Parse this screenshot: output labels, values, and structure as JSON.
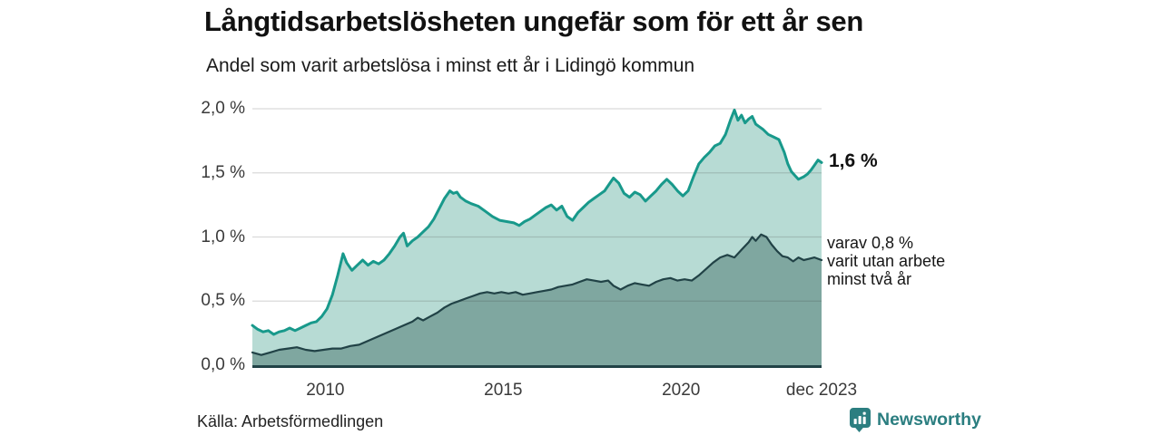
{
  "header": {
    "title": "Långtidsarbetslösheten ungefär som för ett år sen",
    "subtitle": "Andel som varit arbetslösa i minst ett år i Lidingö kommun"
  },
  "chart_data": {
    "type": "area",
    "title": "Långtidsarbetslösheten ungefär som för ett år sen",
    "subtitle": "Andel som varit arbetslösa i minst ett år i Lidingö kommun",
    "unit": "%",
    "grid": "horizontal",
    "x_axis": {
      "range_years": [
        2007.95,
        2023.95
      ],
      "ticks": [
        {
          "label": "2010",
          "year": 2010
        },
        {
          "label": "2015",
          "year": 2015
        },
        {
          "label": "2020",
          "year": 2020
        },
        {
          "label": "dec 2023",
          "year": 2023.95
        }
      ]
    },
    "y_axis": {
      "range": [
        0,
        2.0
      ],
      "ticks": [
        {
          "label": "0,0 %",
          "value": 0.0
        },
        {
          "label": "0,5 %",
          "value": 0.5
        },
        {
          "label": "1,0 %",
          "value": 1.0
        },
        {
          "label": "1,5 %",
          "value": 1.5
        },
        {
          "label": "2,0 %",
          "value": 2.0
        }
      ]
    },
    "colors": {
      "total_line": "#18998b",
      "total_fill": "#b7dbd4",
      "two_year_line": "#214246",
      "two_year_fill": "#7fa7a0",
      "gridline": "rgba(50,50,50,0.18)",
      "baseline": "#214246"
    },
    "series": [
      {
        "name": "Andel som varit arbetslösa i minst ett år",
        "end_value": 1.6,
        "points": [
          [
            2007.95,
            0.31
          ],
          [
            2008.1,
            0.28
          ],
          [
            2008.25,
            0.26
          ],
          [
            2008.4,
            0.27
          ],
          [
            2008.55,
            0.24
          ],
          [
            2008.7,
            0.26
          ],
          [
            2008.85,
            0.27
          ],
          [
            2009.0,
            0.29
          ],
          [
            2009.15,
            0.27
          ],
          [
            2009.3,
            0.29
          ],
          [
            2009.45,
            0.31
          ],
          [
            2009.6,
            0.33
          ],
          [
            2009.75,
            0.34
          ],
          [
            2009.9,
            0.38
          ],
          [
            2010.05,
            0.44
          ],
          [
            2010.2,
            0.55
          ],
          [
            2010.35,
            0.7
          ],
          [
            2010.5,
            0.87
          ],
          [
            2010.6,
            0.8
          ],
          [
            2010.75,
            0.74
          ],
          [
            2010.9,
            0.78
          ],
          [
            2011.05,
            0.82
          ],
          [
            2011.2,
            0.78
          ],
          [
            2011.35,
            0.81
          ],
          [
            2011.5,
            0.79
          ],
          [
            2011.65,
            0.82
          ],
          [
            2011.8,
            0.87
          ],
          [
            2011.95,
            0.93
          ],
          [
            2012.1,
            1.0
          ],
          [
            2012.2,
            1.03
          ],
          [
            2012.3,
            0.93
          ],
          [
            2012.45,
            0.97
          ],
          [
            2012.6,
            1.0
          ],
          [
            2012.75,
            1.04
          ],
          [
            2012.9,
            1.08
          ],
          [
            2013.05,
            1.14
          ],
          [
            2013.2,
            1.22
          ],
          [
            2013.35,
            1.3
          ],
          [
            2013.5,
            1.36
          ],
          [
            2013.6,
            1.34
          ],
          [
            2013.7,
            1.35
          ],
          [
            2013.8,
            1.31
          ],
          [
            2013.95,
            1.28
          ],
          [
            2014.1,
            1.26
          ],
          [
            2014.3,
            1.24
          ],
          [
            2014.5,
            1.2
          ],
          [
            2014.7,
            1.16
          ],
          [
            2014.9,
            1.13
          ],
          [
            2015.1,
            1.12
          ],
          [
            2015.3,
            1.11
          ],
          [
            2015.45,
            1.09
          ],
          [
            2015.6,
            1.12
          ],
          [
            2015.75,
            1.14
          ],
          [
            2015.9,
            1.17
          ],
          [
            2016.05,
            1.2
          ],
          [
            2016.2,
            1.23
          ],
          [
            2016.35,
            1.25
          ],
          [
            2016.5,
            1.21
          ],
          [
            2016.65,
            1.24
          ],
          [
            2016.8,
            1.16
          ],
          [
            2016.95,
            1.13
          ],
          [
            2017.1,
            1.19
          ],
          [
            2017.25,
            1.23
          ],
          [
            2017.4,
            1.27
          ],
          [
            2017.55,
            1.3
          ],
          [
            2017.7,
            1.33
          ],
          [
            2017.85,
            1.36
          ],
          [
            2018.0,
            1.42
          ],
          [
            2018.1,
            1.46
          ],
          [
            2018.25,
            1.42
          ],
          [
            2018.4,
            1.34
          ],
          [
            2018.55,
            1.31
          ],
          [
            2018.7,
            1.35
          ],
          [
            2018.85,
            1.33
          ],
          [
            2019.0,
            1.28
          ],
          [
            2019.15,
            1.32
          ],
          [
            2019.3,
            1.36
          ],
          [
            2019.45,
            1.41
          ],
          [
            2019.6,
            1.45
          ],
          [
            2019.75,
            1.41
          ],
          [
            2019.9,
            1.36
          ],
          [
            2020.05,
            1.32
          ],
          [
            2020.2,
            1.36
          ],
          [
            2020.35,
            1.47
          ],
          [
            2020.5,
            1.57
          ],
          [
            2020.65,
            1.62
          ],
          [
            2020.8,
            1.66
          ],
          [
            2020.95,
            1.71
          ],
          [
            2021.1,
            1.73
          ],
          [
            2021.25,
            1.8
          ],
          [
            2021.4,
            1.92
          ],
          [
            2021.5,
            1.99
          ],
          [
            2021.6,
            1.91
          ],
          [
            2021.7,
            1.95
          ],
          [
            2021.8,
            1.89
          ],
          [
            2021.9,
            1.92
          ],
          [
            2022.0,
            1.94
          ],
          [
            2022.1,
            1.88
          ],
          [
            2022.2,
            1.86
          ],
          [
            2022.3,
            1.84
          ],
          [
            2022.45,
            1.8
          ],
          [
            2022.6,
            1.78
          ],
          [
            2022.75,
            1.76
          ],
          [
            2022.9,
            1.66
          ],
          [
            2023.0,
            1.57
          ],
          [
            2023.1,
            1.51
          ],
          [
            2023.2,
            1.48
          ],
          [
            2023.3,
            1.45
          ],
          [
            2023.45,
            1.47
          ],
          [
            2023.55,
            1.49
          ],
          [
            2023.65,
            1.52
          ],
          [
            2023.75,
            1.56
          ],
          [
            2023.85,
            1.6
          ],
          [
            2023.95,
            1.58
          ]
        ]
      },
      {
        "name": "varav utan arbete minst två år",
        "end_value": 0.8,
        "points": [
          [
            2007.95,
            0.1
          ],
          [
            2008.2,
            0.08
          ],
          [
            2008.45,
            0.1
          ],
          [
            2008.7,
            0.12
          ],
          [
            2008.95,
            0.13
          ],
          [
            2009.2,
            0.14
          ],
          [
            2009.45,
            0.12
          ],
          [
            2009.7,
            0.11
          ],
          [
            2009.95,
            0.12
          ],
          [
            2010.2,
            0.13
          ],
          [
            2010.45,
            0.13
          ],
          [
            2010.7,
            0.15
          ],
          [
            2010.95,
            0.16
          ],
          [
            2011.2,
            0.19
          ],
          [
            2011.45,
            0.22
          ],
          [
            2011.7,
            0.25
          ],
          [
            2011.95,
            0.28
          ],
          [
            2012.2,
            0.31
          ],
          [
            2012.45,
            0.34
          ],
          [
            2012.6,
            0.37
          ],
          [
            2012.75,
            0.35
          ],
          [
            2012.95,
            0.38
          ],
          [
            2013.15,
            0.41
          ],
          [
            2013.35,
            0.45
          ],
          [
            2013.55,
            0.48
          ],
          [
            2013.75,
            0.5
          ],
          [
            2013.95,
            0.52
          ],
          [
            2014.15,
            0.54
          ],
          [
            2014.35,
            0.56
          ],
          [
            2014.55,
            0.57
          ],
          [
            2014.75,
            0.56
          ],
          [
            2014.95,
            0.57
          ],
          [
            2015.15,
            0.56
          ],
          [
            2015.35,
            0.57
          ],
          [
            2015.55,
            0.55
          ],
          [
            2015.75,
            0.56
          ],
          [
            2015.95,
            0.57
          ],
          [
            2016.15,
            0.58
          ],
          [
            2016.35,
            0.59
          ],
          [
            2016.55,
            0.61
          ],
          [
            2016.75,
            0.62
          ],
          [
            2016.95,
            0.63
          ],
          [
            2017.15,
            0.65
          ],
          [
            2017.35,
            0.67
          ],
          [
            2017.55,
            0.66
          ],
          [
            2017.75,
            0.65
          ],
          [
            2017.95,
            0.66
          ],
          [
            2018.1,
            0.62
          ],
          [
            2018.3,
            0.59
          ],
          [
            2018.5,
            0.62
          ],
          [
            2018.7,
            0.64
          ],
          [
            2018.9,
            0.63
          ],
          [
            2019.1,
            0.62
          ],
          [
            2019.3,
            0.65
          ],
          [
            2019.5,
            0.67
          ],
          [
            2019.7,
            0.68
          ],
          [
            2019.9,
            0.66
          ],
          [
            2020.1,
            0.67
          ],
          [
            2020.3,
            0.66
          ],
          [
            2020.5,
            0.7
          ],
          [
            2020.7,
            0.75
          ],
          [
            2020.9,
            0.8
          ],
          [
            2021.1,
            0.84
          ],
          [
            2021.3,
            0.86
          ],
          [
            2021.5,
            0.84
          ],
          [
            2021.7,
            0.9
          ],
          [
            2021.9,
            0.96
          ],
          [
            2022.0,
            1.0
          ],
          [
            2022.1,
            0.97
          ],
          [
            2022.25,
            1.02
          ],
          [
            2022.4,
            1.0
          ],
          [
            2022.55,
            0.94
          ],
          [
            2022.7,
            0.89
          ],
          [
            2022.85,
            0.85
          ],
          [
            2023.0,
            0.84
          ],
          [
            2023.15,
            0.81
          ],
          [
            2023.3,
            0.84
          ],
          [
            2023.45,
            0.82
          ],
          [
            2023.6,
            0.83
          ],
          [
            2023.75,
            0.84
          ],
          [
            2023.95,
            0.82
          ]
        ]
      }
    ],
    "annotations": {
      "end_label_total": "1,6 %",
      "end_label_two_year_lines": [
        "varav 0,8 %",
        "varit utan arbete",
        "minst två år"
      ]
    },
    "legend_position": "right-annotations"
  },
  "footer": {
    "source": "Källa: Arbetsförmedlingen",
    "brand_name": "Newsworthy",
    "brand_color": "#2b7e80"
  }
}
